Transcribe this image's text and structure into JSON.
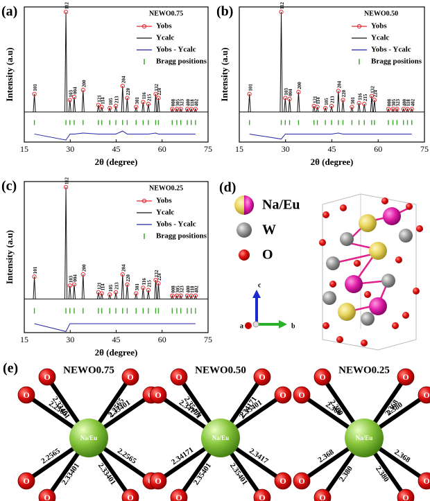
{
  "chart_data": [
    {
      "type": "xrd",
      "panel": "(a)",
      "title": "NEWO0.75",
      "xlabel": "2θ (degree)",
      "ylabel": "Intensity (a.u)",
      "xlim": [
        15,
        75
      ],
      "xticks": [
        15,
        30,
        45,
        60,
        75
      ],
      "ylim": [
        -30,
        105
      ],
      "x": [
        18.3,
        28.6,
        29.9,
        31.3,
        34.2,
        39.2,
        40.3,
        42.9,
        44.9,
        47.1,
        48.6,
        51.5,
        53.8,
        55.5,
        57.9,
        58.8,
        63.3,
        64.8,
        66.1,
        68.2,
        69.5,
        70.9
      ],
      "peak_labels": [
        "101",
        "112",
        "103",
        "004",
        "200",
        "121",
        "114",
        "105",
        "213",
        "204",
        "220",
        "301",
        "116",
        "215",
        "132",
        "224",
        "008",
        "305",
        "323",
        "400",
        "118",
        "402"
      ],
      "series": [
        {
          "name": "Yobs",
          "color": "#e8262a",
          "values": [
            18,
            100,
            12,
            15,
            22,
            7,
            5,
            4,
            6,
            26,
            14,
            5,
            10,
            8,
            18,
            14,
            3,
            3,
            3,
            3,
            3,
            3
          ]
        },
        {
          "name": "Ycalc",
          "color": "#111111",
          "values": [
            18,
            100,
            12,
            15,
            22,
            7,
            5,
            4,
            6,
            26,
            14,
            5,
            10,
            8,
            18,
            14,
            3,
            3,
            3,
            3,
            3,
            3
          ]
        },
        {
          "name": "Yobs - Ycalc",
          "color": "#2424a8",
          "values": [
            -22,
            -28,
            -22,
            -22,
            -21,
            -22,
            -22,
            -22,
            -22,
            -19,
            -22,
            -22,
            -22,
            -22,
            -21,
            -22,
            -22,
            -22,
            -22,
            -22,
            -22,
            -22
          ]
        },
        {
          "name": "Bragg positions",
          "color": "#3aa52a"
        }
      ]
    },
    {
      "type": "xrd",
      "panel": "(b)",
      "title": "NEWO0.50",
      "xlabel": "2θ (degree)",
      "ylabel": "Intensity (a.u)",
      "xlim": [
        15,
        75
      ],
      "xticks": [
        15,
        30,
        45,
        60,
        75
      ],
      "ylim": [
        -30,
        105
      ],
      "x": [
        18.3,
        28.6,
        29.9,
        31.3,
        34.2,
        39.2,
        40.3,
        42.9,
        44.9,
        47.1,
        48.6,
        51.5,
        53.8,
        55.5,
        57.9,
        58.8,
        63.3,
        64.8,
        66.1,
        68.2,
        69.5,
        70.9
      ],
      "peak_labels": [
        "101",
        "112",
        "103",
        "004",
        "200",
        "121",
        "114",
        "105",
        "213",
        "204",
        "220",
        "301",
        "116",
        "215",
        "132",
        "224",
        "008",
        "305",
        "323",
        "400",
        "118",
        "402"
      ],
      "series": [
        {
          "name": "Yobs",
          "color": "#e8262a",
          "values": [
            18,
            100,
            14,
            13,
            20,
            6,
            5,
            4,
            6,
            21,
            12,
            5,
            9,
            8,
            16,
            12,
            3,
            3,
            3,
            3,
            3,
            3
          ]
        },
        {
          "name": "Ycalc",
          "color": "#111111",
          "values": [
            18,
            100,
            14,
            13,
            20,
            6,
            5,
            4,
            6,
            21,
            12,
            5,
            9,
            8,
            16,
            12,
            3,
            3,
            3,
            3,
            3,
            3
          ]
        },
        {
          "name": "Yobs - Ycalc",
          "color": "#2424a8",
          "values": [
            -22,
            -27,
            -22,
            -22,
            -22,
            -22,
            -22,
            -22,
            -22,
            -21,
            -22,
            -22,
            -22,
            -22,
            -22,
            -22,
            -22,
            -22,
            -22,
            -22,
            -22,
            -22
          ]
        },
        {
          "name": "Bragg positions",
          "color": "#3aa52a"
        }
      ]
    },
    {
      "type": "xrd",
      "panel": "(c)",
      "title": "NEWO0.25",
      "xlabel": "2θ (degree)",
      "ylabel": "Intensity (a.u)",
      "xlim": [
        15,
        75
      ],
      "xticks": [
        15,
        30,
        45,
        60,
        75
      ],
      "ylim": [
        -30,
        105
      ],
      "x": [
        18.3,
        28.6,
        29.9,
        31.3,
        34.2,
        39.2,
        40.3,
        42.9,
        44.9,
        47.1,
        48.6,
        51.5,
        53.8,
        55.5,
        57.9,
        58.8,
        63.3,
        64.8,
        66.1,
        68.2,
        69.5,
        70.9
      ],
      "peak_labels": [
        "101",
        "112",
        "103",
        "004",
        "200",
        "121",
        "114",
        "105",
        "213",
        "204",
        "220",
        "301",
        "116",
        "215",
        "132",
        "224",
        "008",
        "305",
        "323",
        "400",
        "118",
        "402"
      ],
      "series": [
        {
          "name": "Yobs",
          "color": "#e8262a",
          "values": [
            20,
            100,
            12,
            13,
            22,
            6,
            5,
            4,
            6,
            22,
            13,
            5,
            10,
            8,
            17,
            14,
            3,
            3,
            3,
            3,
            3,
            3
          ]
        },
        {
          "name": "Ycalc",
          "color": "#111111",
          "values": [
            20,
            100,
            12,
            13,
            22,
            6,
            5,
            4,
            6,
            22,
            13,
            5,
            10,
            8,
            17,
            14,
            3,
            3,
            3,
            3,
            3,
            3
          ]
        },
        {
          "name": "Yobs - Ycalc",
          "color": "#2424a8",
          "values": [
            -22,
            -29,
            -22,
            -22,
            -22,
            -22,
            -22,
            -22,
            -22,
            -22,
            -22,
            -22,
            -22,
            -22,
            -22,
            -22,
            -22,
            -22,
            -22,
            -22,
            -22,
            -22
          ]
        },
        {
          "name": "Bragg positions",
          "color": "#3aa52a"
        }
      ]
    }
  ],
  "structure": {
    "panel": "(d)",
    "legend": [
      "Na/Eu",
      "W",
      "O"
    ],
    "axes": [
      "a",
      "b",
      "c"
    ]
  },
  "coordination": {
    "panel": "(e)",
    "groups": [
      {
        "title": "NEWO0.75",
        "center": "Na/Eu",
        "atom": "O",
        "bonds": [
          "2.2565",
          "2.33401",
          "2.2565",
          "2.33401",
          "2.2565",
          "2.33401",
          "2.33401",
          "2.2565"
        ]
      },
      {
        "title": "NEWO0.50",
        "center": "Na/Eu",
        "atom": "O",
        "bonds": [
          "2.34171",
          "2.35401",
          "2.34171",
          "2.35401",
          "2.34171",
          "2.35401",
          "2.35401",
          "2.3417"
        ]
      },
      {
        "title": "NEWO0.25",
        "center": "Na/Eu",
        "atom": "O",
        "bonds": [
          "2.368",
          "2.380",
          "2.368",
          "2.380",
          "2.368",
          "2.380",
          "2.380",
          "2.368"
        ]
      }
    ]
  }
}
